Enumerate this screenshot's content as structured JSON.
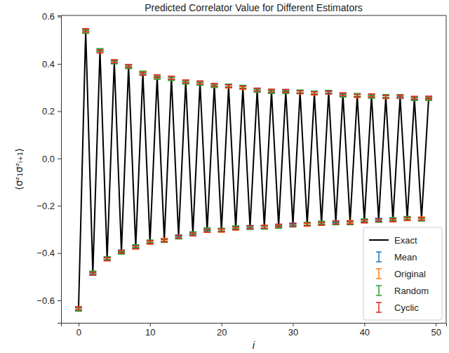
{
  "chart_data": {
    "type": "line",
    "title": "Predicted Correlator Value for Different Estimators",
    "x_label": "i",
    "y_label": "⟨σᶻ₁σᶻᵢ₊₁⟩",
    "x": [
      0,
      1,
      2,
      3,
      4,
      5,
      6,
      7,
      8,
      9,
      10,
      11,
      12,
      13,
      14,
      15,
      16,
      17,
      18,
      19,
      20,
      21,
      22,
      23,
      24,
      25,
      26,
      27,
      28,
      29,
      30,
      31,
      32,
      33,
      34,
      35,
      36,
      37,
      38,
      39,
      40,
      41,
      42,
      43,
      44,
      45,
      46,
      47,
      48,
      49
    ],
    "xlim": [
      -2.45,
      51.45
    ],
    "xticks": [
      0,
      10,
      20,
      30,
      40,
      50
    ],
    "ylim": [
      -0.695,
      0.605
    ],
    "yticks": [
      {
        "value": -0.6,
        "label": "−0.6"
      },
      {
        "value": -0.4,
        "label": "−0.4"
      },
      {
        "value": -0.2,
        "label": "−0.2"
      },
      {
        "value": 0,
        "label": "0.0"
      },
      0.2,
      0.4,
      0.6
    ],
    "grid": false,
    "legend": "lower right",
    "series": [
      {
        "name": "Exact",
        "type": "line",
        "color": "#000000",
        "line_style": "solid",
        "values": [
          -0.635,
          0.54,
          -0.485,
          0.455,
          -0.425,
          0.41,
          -0.395,
          0.39,
          -0.375,
          0.36,
          -0.355,
          0.345,
          -0.345,
          0.34,
          -0.33,
          0.325,
          -0.32,
          0.32,
          -0.305,
          0.31,
          -0.305,
          0.305,
          -0.295,
          0.3,
          -0.29,
          0.29,
          -0.29,
          0.285,
          -0.285,
          0.285,
          -0.28,
          0.28,
          -0.28,
          0.275,
          -0.275,
          0.28,
          -0.27,
          0.27,
          -0.27,
          0.265,
          -0.265,
          0.265,
          -0.26,
          0.26,
          -0.26,
          0.26,
          -0.255,
          0.255,
          -0.255,
          0.255
        ]
      },
      {
        "name": "Mean",
        "type": "errorbar",
        "color": "#1f77b4",
        "values": [
          -0.637,
          0.538,
          -0.488,
          0.457,
          -0.423,
          0.408,
          -0.392,
          0.388,
          -0.373,
          0.362,
          -0.352,
          0.343,
          -0.347,
          0.338,
          -0.328,
          0.323,
          -0.322,
          0.318,
          -0.302,
          0.308,
          -0.303,
          0.307,
          -0.293,
          0.302,
          -0.288,
          0.288,
          -0.291,
          0.283,
          -0.283,
          0.287,
          -0.278,
          0.282,
          -0.277,
          0.277,
          -0.273,
          0.278,
          -0.268,
          0.268,
          -0.272,
          0.267,
          -0.263,
          0.263,
          -0.258,
          0.262,
          -0.258,
          0.258,
          -0.253,
          0.253,
          -0.257,
          0.257
        ],
        "errors": [
          0.006,
          0.006,
          0.005,
          0.005,
          0.005,
          0.005,
          0.005,
          0.005,
          0.005,
          0.005,
          0.005,
          0.005,
          0.005,
          0.005,
          0.005,
          0.005,
          0.005,
          0.005,
          0.005,
          0.005,
          0.005,
          0.005,
          0.005,
          0.005,
          0.005,
          0.005,
          0.005,
          0.005,
          0.005,
          0.005,
          0.005,
          0.005,
          0.005,
          0.005,
          0.005,
          0.005,
          0.005,
          0.005,
          0.005,
          0.005,
          0.005,
          0.005,
          0.005,
          0.005,
          0.005,
          0.005,
          0.005,
          0.005,
          0.005,
          0.005
        ]
      },
      {
        "name": "Original",
        "type": "errorbar",
        "color": "#ff7f0e",
        "values": [
          -0.634,
          0.541,
          -0.484,
          0.453,
          -0.427,
          0.412,
          -0.397,
          0.391,
          -0.377,
          0.359,
          -0.357,
          0.347,
          -0.343,
          0.341,
          -0.332,
          0.327,
          -0.318,
          0.321,
          -0.307,
          0.311,
          -0.306,
          0.304,
          -0.297,
          0.298,
          -0.292,
          0.291,
          -0.288,
          0.286,
          -0.287,
          0.284,
          -0.282,
          0.279,
          -0.281,
          0.274,
          -0.277,
          0.281,
          -0.272,
          0.271,
          -0.268,
          0.264,
          -0.267,
          0.266,
          -0.262,
          0.259,
          -0.262,
          0.261,
          -0.257,
          0.256,
          -0.253,
          0.254
        ],
        "errors": [
          0.007,
          0.007,
          0.006,
          0.006,
          0.006,
          0.006,
          0.006,
          0.006,
          0.006,
          0.006,
          0.006,
          0.006,
          0.006,
          0.006,
          0.006,
          0.006,
          0.006,
          0.006,
          0.006,
          0.006,
          0.006,
          0.006,
          0.006,
          0.006,
          0.006,
          0.006,
          0.006,
          0.006,
          0.006,
          0.006,
          0.006,
          0.006,
          0.006,
          0.006,
          0.006,
          0.006,
          0.006,
          0.006,
          0.006,
          0.006,
          0.006,
          0.006,
          0.006,
          0.006,
          0.006,
          0.006,
          0.006,
          0.006,
          0.006,
          0.006
        ]
      },
      {
        "name": "Random",
        "type": "errorbar",
        "color": "#2ca02c",
        "values": [
          -0.639,
          0.536,
          -0.482,
          0.459,
          -0.421,
          0.406,
          -0.399,
          0.386,
          -0.371,
          0.364,
          -0.351,
          0.341,
          -0.349,
          0.336,
          -0.334,
          0.321,
          -0.316,
          0.316,
          -0.299,
          0.306,
          -0.301,
          0.309,
          -0.291,
          0.304,
          -0.294,
          0.286,
          -0.293,
          0.281,
          -0.289,
          0.281,
          -0.284,
          0.284,
          -0.276,
          0.279,
          -0.271,
          0.282,
          -0.274,
          0.266,
          -0.274,
          0.269,
          -0.261,
          0.261,
          -0.264,
          0.264,
          -0.256,
          0.264,
          -0.251,
          0.251,
          -0.259,
          0.251
        ],
        "errors": [
          0.007,
          0.007,
          0.006,
          0.006,
          0.006,
          0.006,
          0.006,
          0.006,
          0.006,
          0.006,
          0.006,
          0.006,
          0.006,
          0.006,
          0.006,
          0.006,
          0.006,
          0.006,
          0.006,
          0.006,
          0.006,
          0.006,
          0.006,
          0.006,
          0.006,
          0.006,
          0.006,
          0.006,
          0.006,
          0.006,
          0.006,
          0.006,
          0.006,
          0.006,
          0.006,
          0.006,
          0.006,
          0.006,
          0.006,
          0.006,
          0.006,
          0.006,
          0.006,
          0.006,
          0.006,
          0.006,
          0.006,
          0.006,
          0.006,
          0.006
        ]
      },
      {
        "name": "Cyclic",
        "type": "errorbar",
        "color": "#d62728",
        "values": [
          -0.633,
          0.543,
          -0.487,
          0.452,
          -0.426,
          0.411,
          -0.394,
          0.392,
          -0.376,
          0.358,
          -0.354,
          0.348,
          -0.346,
          0.342,
          -0.331,
          0.326,
          -0.321,
          0.322,
          -0.306,
          0.312,
          -0.304,
          0.306,
          -0.296,
          0.301,
          -0.291,
          0.292,
          -0.289,
          0.287,
          -0.284,
          0.286,
          -0.281,
          0.281,
          -0.279,
          0.276,
          -0.276,
          0.279,
          -0.271,
          0.272,
          -0.271,
          0.266,
          -0.266,
          0.267,
          -0.261,
          0.261,
          -0.261,
          0.262,
          -0.256,
          0.257,
          -0.256,
          0.258
        ],
        "errors": [
          0.006,
          0.006,
          0.006,
          0.006,
          0.006,
          0.006,
          0.006,
          0.006,
          0.006,
          0.006,
          0.006,
          0.006,
          0.006,
          0.006,
          0.006,
          0.006,
          0.006,
          0.006,
          0.006,
          0.006,
          0.006,
          0.006,
          0.006,
          0.006,
          0.006,
          0.006,
          0.006,
          0.006,
          0.006,
          0.006,
          0.006,
          0.006,
          0.006,
          0.006,
          0.006,
          0.006,
          0.006,
          0.006,
          0.006,
          0.006,
          0.006,
          0.006,
          0.006,
          0.006,
          0.006,
          0.006,
          0.006,
          0.006,
          0.006,
          0.006
        ]
      }
    ]
  }
}
